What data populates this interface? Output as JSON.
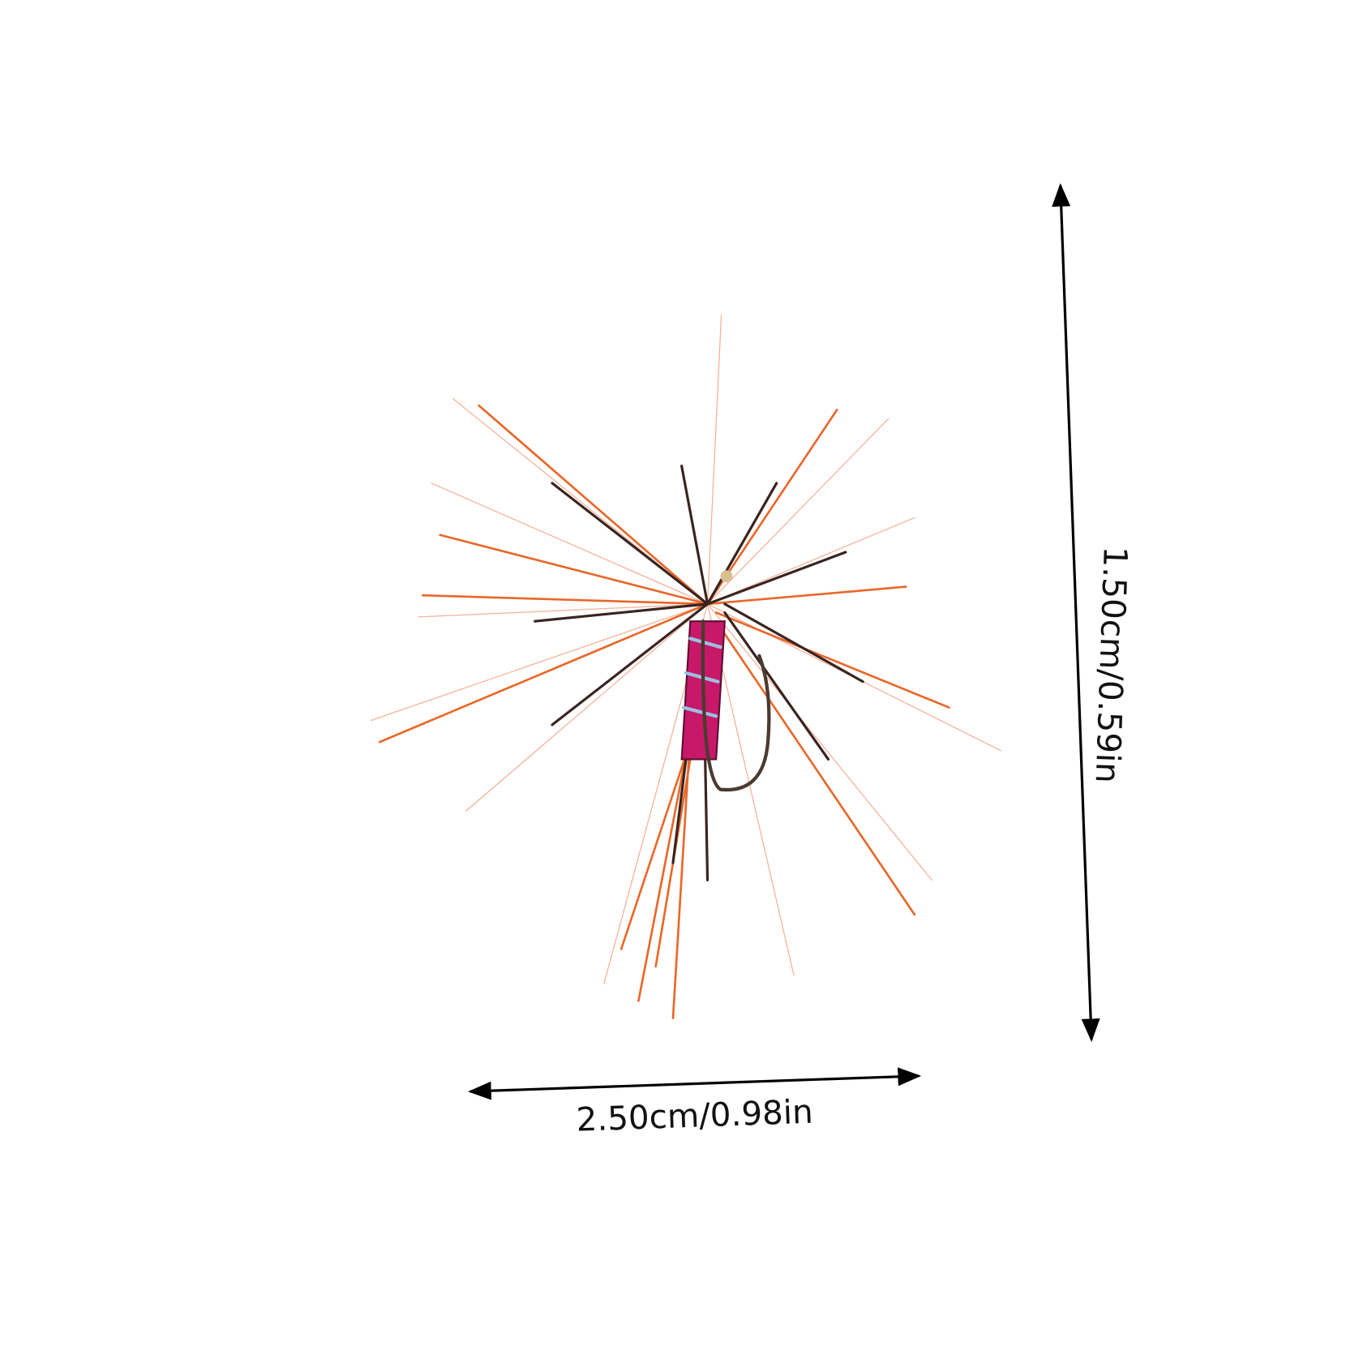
{
  "dimensions": {
    "width": {
      "label": "2.50cm/0.98in"
    },
    "height": {
      "label": "1.50cm/0.59in"
    }
  }
}
